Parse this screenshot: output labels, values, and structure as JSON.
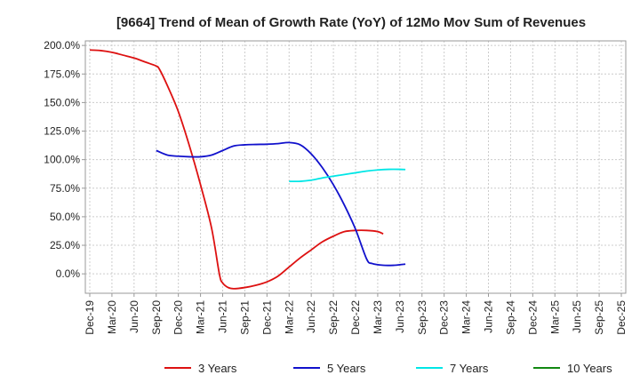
{
  "chart_data": {
    "type": "line",
    "title": "[9664]  Trend of Mean of Growth Rate (YoY) of 12Mo Mov Sum of Revenues",
    "xlabel": "",
    "ylabel": "",
    "x_ticks": [
      "Dec-19",
      "Mar-20",
      "Jun-20",
      "Sep-20",
      "Dec-20",
      "Mar-21",
      "Jun-21",
      "Sep-21",
      "Dec-21",
      "Mar-22",
      "Jun-22",
      "Sep-22",
      "Dec-22",
      "Mar-23",
      "Jun-23",
      "Sep-23",
      "Dec-23",
      "Mar-24",
      "Jun-24",
      "Sep-24",
      "Dec-24",
      "Mar-25",
      "Jun-25",
      "Sep-25",
      "Dec-25"
    ],
    "y_ticks": [
      "200.0%",
      "175.0%",
      "150.0%",
      "125.0%",
      "100.0%",
      "75.0%",
      "50.0%",
      "25.0%",
      "0.0%"
    ],
    "ylim": [
      -17,
      204
    ],
    "grid": true,
    "legend_position": "bottom",
    "series": [
      {
        "name": "3 Years",
        "color": "#dd1111",
        "points": [
          [
            0,
            196
          ],
          [
            1,
            195.5
          ],
          [
            2,
            194
          ],
          [
            3,
            191.5
          ],
          [
            4,
            189
          ],
          [
            5,
            185.5
          ],
          [
            6,
            182
          ],
          [
            6.3,
            179
          ],
          [
            7,
            165
          ],
          [
            8,
            142
          ],
          [
            9,
            112
          ],
          [
            10,
            78
          ],
          [
            11,
            40
          ],
          [
            11.7,
            0
          ],
          [
            12,
            -8
          ],
          [
            12.5,
            -12
          ],
          [
            13,
            -13
          ],
          [
            14,
            -12
          ],
          [
            15,
            -10
          ],
          [
            16,
            -7
          ],
          [
            17,
            -2
          ],
          [
            18,
            6
          ],
          [
            19,
            14
          ],
          [
            20,
            21
          ],
          [
            21,
            28
          ],
          [
            22,
            33
          ],
          [
            23,
            37
          ],
          [
            24,
            38
          ],
          [
            25,
            38
          ],
          [
            26,
            37
          ],
          [
            26.5,
            35
          ]
        ]
      },
      {
        "name": "5 Years",
        "color": "#1111cc",
        "points": [
          [
            6,
            108
          ],
          [
            7,
            104
          ],
          [
            8,
            103
          ],
          [
            9,
            102.5
          ],
          [
            10,
            102.5
          ],
          [
            11,
            104
          ],
          [
            12,
            108
          ],
          [
            13,
            112
          ],
          [
            14,
            113
          ],
          [
            15,
            113.3
          ],
          [
            16,
            113.5
          ],
          [
            17,
            114
          ],
          [
            18,
            115
          ],
          [
            19,
            113
          ],
          [
            20,
            105
          ],
          [
            21,
            93
          ],
          [
            22,
            78
          ],
          [
            23,
            60
          ],
          [
            24,
            39
          ],
          [
            25,
            13
          ],
          [
            25.5,
            9
          ],
          [
            26.5,
            7.5
          ],
          [
            27.5,
            7.5
          ],
          [
            28,
            8
          ],
          [
            28.5,
            8.5
          ]
        ]
      },
      {
        "name": "7 Years",
        "color": "#00e6e6",
        "points": [
          [
            18,
            81
          ],
          [
            19,
            81
          ],
          [
            20,
            82
          ],
          [
            21,
            84
          ],
          [
            22,
            85.5
          ],
          [
            23,
            87
          ],
          [
            24,
            88.5
          ],
          [
            25,
            90
          ],
          [
            26,
            91
          ],
          [
            27,
            91.5
          ],
          [
            28,
            91.5
          ],
          [
            28.5,
            91.3
          ]
        ]
      },
      {
        "name": "10 Years",
        "color": "#118811",
        "points": []
      }
    ]
  }
}
